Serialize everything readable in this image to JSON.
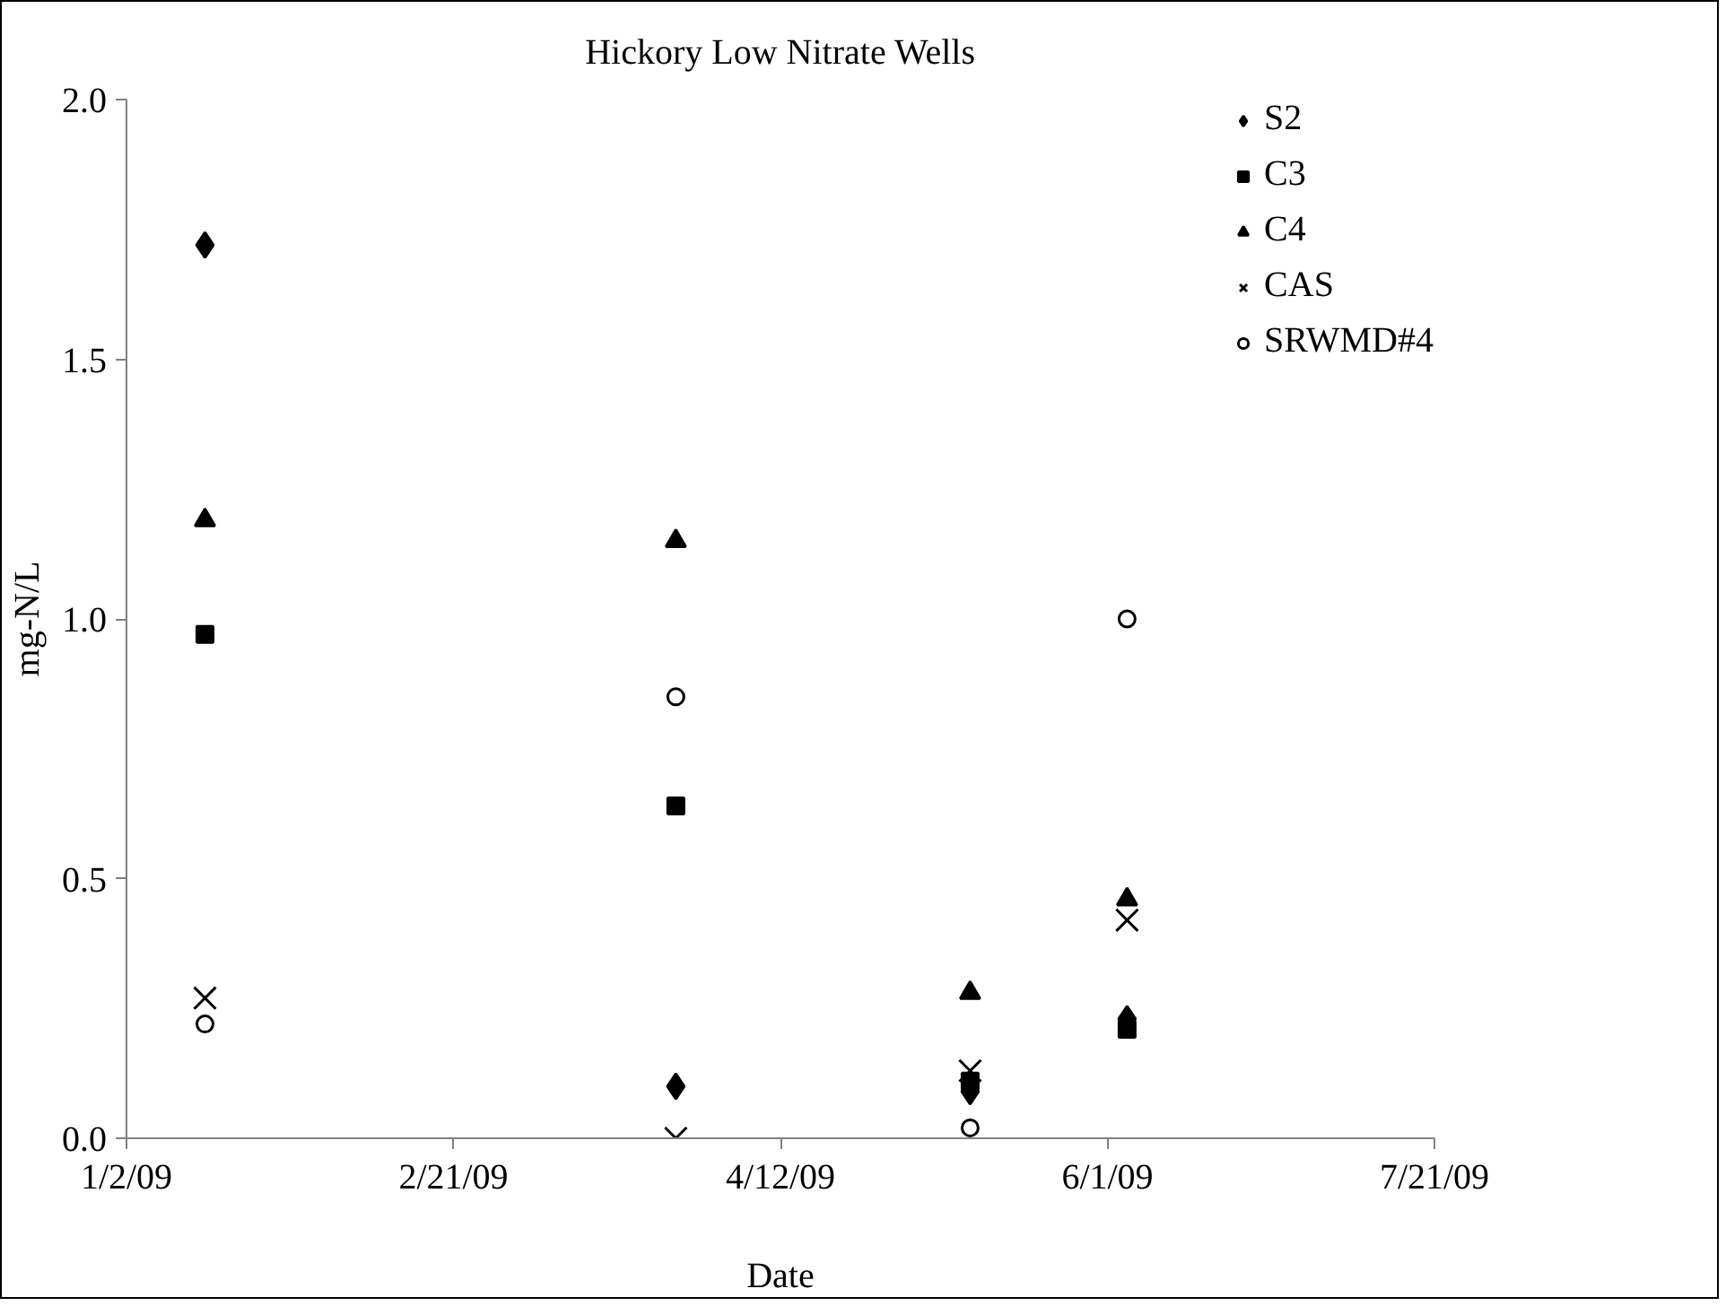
{
  "chart_data": {
    "type": "scatter",
    "title": "Hickory Low Nitrate Wells",
    "xlabel": "Date",
    "ylabel": "mg-N/L",
    "x": [
      "2009-01-14",
      "2009-03-27",
      "2009-05-11",
      "2009-06-04"
    ],
    "series": [
      {
        "name": "S2",
        "color": "#000000",
        "marker": "diamond",
        "values": [
          1.72,
          0.1,
          0.09,
          0.23
        ]
      },
      {
        "name": "C3",
        "color": "#000000",
        "marker": "square",
        "values": [
          0.97,
          0.64,
          0.11,
          0.21
        ]
      },
      {
        "name": "C4",
        "color": "#000000",
        "marker": "triangle",
        "values": [
          1.19,
          1.15,
          0.28,
          0.46
        ]
      },
      {
        "name": "CAS",
        "color": "#000000",
        "marker": "cross",
        "values": [
          0.27,
          0.0,
          0.13,
          0.42
        ]
      },
      {
        "name": "SRWMD#4",
        "color": "#000000",
        "marker": "circle",
        "values": [
          0.22,
          0.85,
          0.02,
          1.0
        ]
      }
    ],
    "xlim": [
      "2009-01-02",
      "2009-07-21"
    ],
    "xticks": [
      {
        "value": "2009-01-02",
        "label": "1/2/09"
      },
      {
        "value": "2009-02-21",
        "label": "2/21/09"
      },
      {
        "value": "2009-04-12",
        "label": "4/12/09"
      },
      {
        "value": "2009-06-01",
        "label": "6/1/09"
      },
      {
        "value": "2009-07-21",
        "label": "7/21/09"
      }
    ],
    "ylim": [
      0,
      2.0
    ],
    "yticks": [
      {
        "value": 0,
        "label": "0.0"
      },
      {
        "value": 0.5,
        "label": "0.5"
      },
      {
        "value": 1.0,
        "label": "1.0"
      },
      {
        "value": 1.5,
        "label": "1.5"
      },
      {
        "value": 2.0,
        "label": "2.0"
      }
    ],
    "grid": false,
    "legend": "top right"
  }
}
